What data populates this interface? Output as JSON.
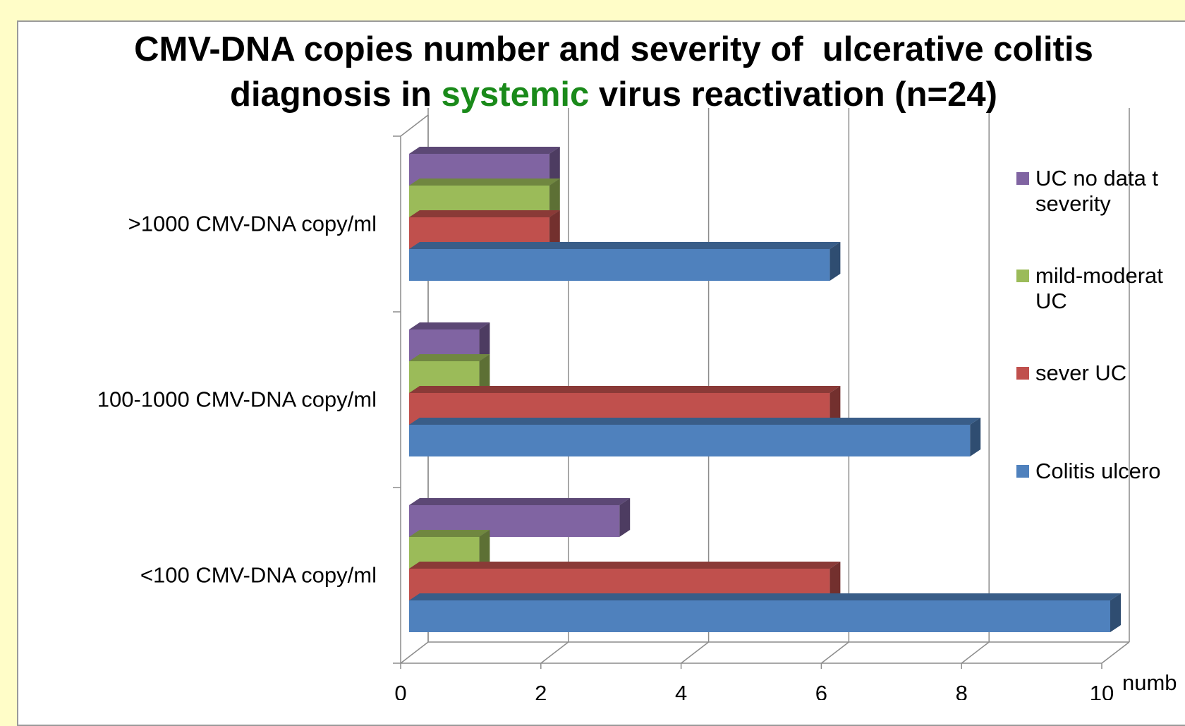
{
  "chart_data": {
    "type": "bar3d-horizontal",
    "title_parts": [
      "CMV-DNA copies number and severity of  ulcerative colitis",
      "diagnosis in ",
      "systemic",
      " virus reactivation (n=24)"
    ],
    "title_highlight_color": "#1a8a1a",
    "categories": [
      ">1000 CMV-DNA copy/ml",
      "100-1000 CMV-DNA copy/ml",
      "<100 CMV-DNA copy/ml"
    ],
    "series": [
      {
        "name": "UC no data t severity",
        "color": "#8064a2",
        "values": [
          2,
          1,
          3
        ]
      },
      {
        "name": "mild-moderat UC",
        "color": "#9bbb59",
        "values": [
          2,
          1,
          1
        ]
      },
      {
        "name": "sever UC",
        "color": "#c0504d",
        "values": [
          2,
          6,
          6
        ]
      },
      {
        "name": "Colitis ulcero",
        "color": "#4f81bd",
        "values": [
          6,
          8,
          10
        ]
      }
    ],
    "xlim": [
      0,
      10
    ],
    "xticks": [
      0,
      2,
      4,
      6,
      8,
      10
    ],
    "xlabel": "numb",
    "grid": true
  }
}
